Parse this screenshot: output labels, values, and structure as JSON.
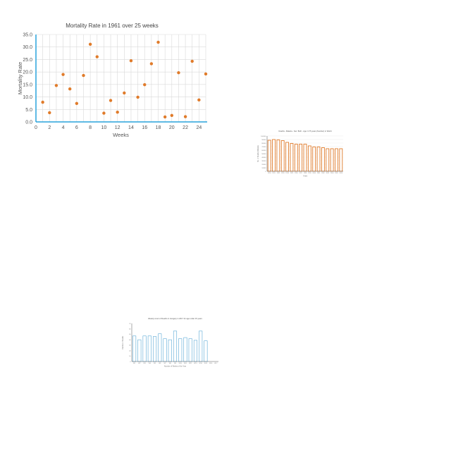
{
  "chart_data": [
    {
      "type": "scatter",
      "title": "Mortality Rate in 1961 over 25 weeks",
      "xlabel": "Weeks",
      "ylabel": "Mortality Rate",
      "xlim": [
        0,
        25
      ],
      "ylim": [
        0,
        35
      ],
      "xticks": [
        "0",
        "2",
        "4",
        "6",
        "8",
        "10",
        "12",
        "14",
        "16",
        "18",
        "20",
        "22",
        "24"
      ],
      "yticks": [
        "0.0",
        "5.0",
        "10.0",
        "15.0",
        "20.0",
        "25.0",
        "30.0",
        "35.0"
      ],
      "grid": true,
      "color": "#e07b2a",
      "axis_color": "#29a3dc",
      "x": [
        1,
        2,
        3,
        4,
        5,
        6,
        7,
        8,
        9,
        10,
        11,
        12,
        13,
        14,
        15,
        16,
        17,
        18,
        19,
        20,
        21,
        22,
        23,
        24,
        25
      ],
      "y": [
        7.9,
        3.7,
        14.6,
        19.0,
        13.2,
        7.4,
        18.6,
        31.1,
        26.1,
        3.5,
        8.6,
        3.9,
        11.6,
        24.5,
        9.9,
        14.9,
        23.3,
        31.9,
        2.0,
        2.6,
        19.7,
        2.1,
        24.3,
        8.8,
        19.2
      ]
    },
    {
      "type": "bar",
      "title": "Deaths - Malaria - Sex: Both - Age: 0-75 years (Number) in World",
      "xlabel": "Years",
      "ylabel": "No. of Deaths (Malaria)",
      "ylim": [
        0,
        100000
      ],
      "yticks": [
        "0",
        "10000",
        "20000",
        "30000",
        "40000",
        "50000",
        "60000",
        "70000",
        "80000",
        "90000",
        "100000"
      ],
      "grid": true,
      "color": "#e07b2a",
      "categories": [
        "1990",
        "1991",
        "1992",
        "1993",
        "1994",
        "1995",
        "1996",
        "1997",
        "1998",
        "1999",
        "2000",
        "2001",
        "2002",
        "2003",
        "2004",
        "2005",
        "2006"
      ],
      "values": [
        88000,
        90000,
        89000,
        87000,
        82000,
        79000,
        77000,
        77000,
        77000,
        72000,
        69000,
        69000,
        67000,
        64000,
        64000,
        64000,
        64000
      ]
    },
    {
      "type": "bar",
      "title": "Weekly count of Deaths in Hungary in 2017 for age under 15 years",
      "xlabel": "Number of Weeks of the Year",
      "ylabel": "Number of Deaths",
      "ylim": [
        0,
        70
      ],
      "yticks": [
        "0",
        "10",
        "20",
        "30",
        "40",
        "50",
        "60",
        "70"
      ],
      "grid": false,
      "color": "#5aa9d6",
      "categories": [
        "W1",
        "W2",
        "W3",
        "W4",
        "W5",
        "W6",
        "W7",
        "W8",
        "W9",
        "W10",
        "W11",
        "W12",
        "W13",
        "W14",
        "W15",
        "W16",
        "W17"
      ],
      "values": [
        47,
        40,
        47,
        47,
        46,
        51,
        42,
        40,
        56,
        42,
        44,
        42,
        39,
        56,
        38,
        0,
        0
      ]
    }
  ]
}
